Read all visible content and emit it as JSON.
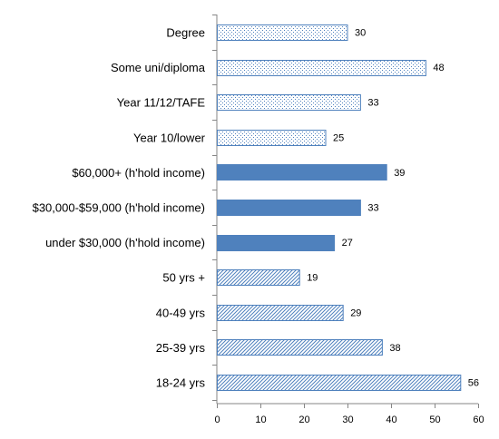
{
  "chart_data": {
    "type": "bar",
    "orientation": "horizontal",
    "title": "",
    "xlabel": "",
    "ylabel": "",
    "xlim": [
      0,
      60
    ],
    "x_ticks": [
      0,
      10,
      20,
      30,
      40,
      50,
      60
    ],
    "grid": false,
    "legend": "none",
    "bar_color": "#4f81bd",
    "categories": [
      "Degree",
      "Some uni/diploma",
      "Year 11/12/TAFE",
      "Year 10/lower",
      "$60,000+ (h'hold income)",
      "$30,000-$59,000 (h'hold income)",
      "under $30,000 (h'hold income)",
      "50 yrs +",
      "40-49 yrs",
      "25-39 yrs",
      "18-24 yrs"
    ],
    "values": [
      30,
      48,
      33,
      25,
      39,
      33,
      27,
      19,
      29,
      38,
      56
    ],
    "fill_patterns": [
      "dots",
      "dots",
      "dots",
      "dots",
      "solid",
      "solid",
      "solid",
      "diagonal",
      "diagonal",
      "diagonal",
      "diagonal"
    ]
  }
}
